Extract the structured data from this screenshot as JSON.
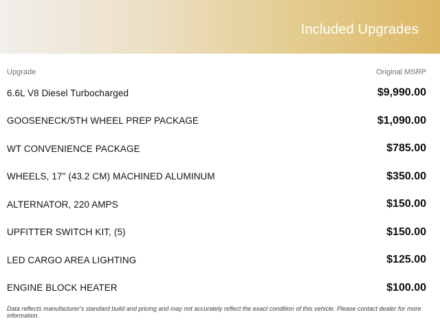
{
  "banner": {
    "title": "Included Upgrades",
    "gradient_left_color": "#f1efec",
    "gradient_right_color": "#dcb766",
    "title_color": "#ffffff"
  },
  "table": {
    "columns": {
      "upgrade": "Upgrade",
      "msrp": "Original MSRP"
    },
    "rows": [
      {
        "name": "6.6L V8 Diesel Turbocharged",
        "price": "$9,990.00"
      },
      {
        "name": "GOOSENECK/5TH WHEEL PREP PACKAGE",
        "price": "$1,090.00"
      },
      {
        "name": "WT CONVENIENCE PACKAGE",
        "price": "$785.00"
      },
      {
        "name": "WHEELS, 17\" (43.2 CM) MACHINED ALUMINUM",
        "price": "$350.00"
      },
      {
        "name": "ALTERNATOR, 220 AMPS",
        "price": "$150.00"
      },
      {
        "name": "UPFITTER SWITCH KIT, (5)",
        "price": "$150.00"
      },
      {
        "name": "LED CARGO AREA LIGHTING",
        "price": "$125.00"
      },
      {
        "name": "ENGINE BLOCK HEATER",
        "price": "$100.00"
      }
    ]
  },
  "footer": {
    "disclaimer": "Data reflects manufacturer's standard build and pricing and may not accurately reflect the exact condition of this vehicle. Please contact dealer for more information."
  }
}
